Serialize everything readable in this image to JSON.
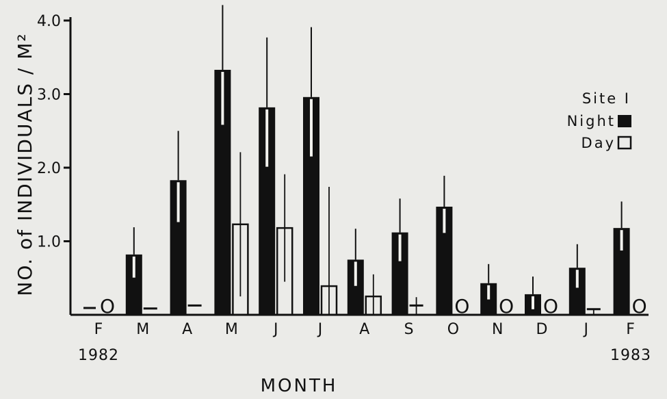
{
  "chart_data": {
    "type": "bar",
    "xlabel": "MONTH",
    "ylabel": "NO. of INDIVIDUALS / M²",
    "ylim": [
      0,
      4.0
    ],
    "yticks": [
      "1.0",
      "2.0",
      "3.0",
      "4.0"
    ],
    "categories": [
      "F",
      "M",
      "A",
      "M",
      "J",
      "J",
      "A",
      "S",
      "O",
      "N",
      "D",
      "J",
      "F"
    ],
    "year_labels": {
      "start": "1982",
      "end": "1983"
    },
    "legend": {
      "title": "Site I",
      "entries": [
        "Night",
        "Day"
      ],
      "placement": "top-right"
    },
    "zero_marker": "O",
    "series": [
      {
        "name": "Night",
        "style": "filled",
        "values": [
          0.0,
          0.82,
          1.83,
          3.33,
          2.82,
          2.96,
          0.75,
          1.12,
          1.47,
          0.43,
          0.28,
          0.64,
          1.18
        ],
        "error": [
          0.0,
          0.37,
          0.67,
          0.88,
          0.95,
          0.95,
          0.42,
          0.46,
          0.42,
          0.26,
          0.24,
          0.32,
          0.36
        ],
        "zero_marker_months": [
          0
        ]
      },
      {
        "name": "Day",
        "style": "open",
        "values": [
          0.0,
          0.04,
          0.08,
          1.23,
          1.18,
          0.39,
          0.25,
          0.08,
          0.0,
          0.0,
          0.0,
          0.03,
          0.0
        ],
        "error": [
          0.0,
          0.0,
          0.0,
          0.98,
          0.73,
          1.35,
          0.3,
          0.16,
          0.0,
          0.0,
          0.0,
          0.05,
          0.0
        ],
        "zero_marker_months": [
          0,
          8,
          9,
          10,
          12
        ]
      }
    ]
  },
  "colors": {
    "background": "#ebebe8",
    "ink": "#111111",
    "highlight": "#f2f2ee"
  }
}
